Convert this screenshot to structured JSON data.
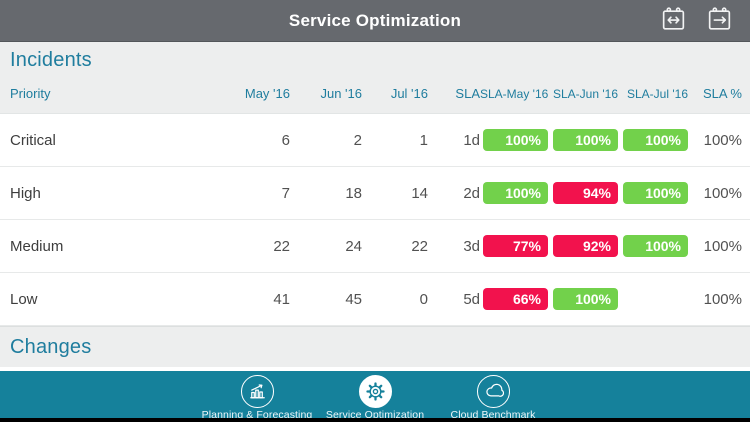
{
  "header": {
    "title": "Service Optimization",
    "icons": [
      {
        "name": "calendar-range-icon"
      },
      {
        "name": "calendar-forward-icon"
      }
    ]
  },
  "sections": {
    "incidents_title": "Incidents",
    "changes_title": "Changes"
  },
  "incidents_table": {
    "columns": [
      "Priority",
      "May '16",
      "Jun '16",
      "Jul '16",
      "SLA",
      "SLA-May '16",
      "SLA-Jun '16",
      "SLA-Jul '16",
      "SLA %"
    ],
    "rows": [
      {
        "priority": "Critical",
        "may": "6",
        "jun": "2",
        "jul": "1",
        "sla": "1d",
        "sla_may": {
          "label": "100%",
          "status": "pass"
        },
        "sla_jun": {
          "label": "100%",
          "status": "pass"
        },
        "sla_jul": {
          "label": "100%",
          "status": "pass"
        },
        "sla_pct": "100%"
      },
      {
        "priority": "High",
        "may": "7",
        "jun": "18",
        "jul": "14",
        "sla": "2d",
        "sla_may": {
          "label": "100%",
          "status": "pass"
        },
        "sla_jun": {
          "label": "94%",
          "status": "fail"
        },
        "sla_jul": {
          "label": "100%",
          "status": "pass"
        },
        "sla_pct": "100%"
      },
      {
        "priority": "Medium",
        "may": "22",
        "jun": "24",
        "jul": "22",
        "sla": "3d",
        "sla_may": {
          "label": "77%",
          "status": "fail"
        },
        "sla_jun": {
          "label": "92%",
          "status": "fail"
        },
        "sla_jul": {
          "label": "100%",
          "status": "pass"
        },
        "sla_pct": "100%"
      },
      {
        "priority": "Low",
        "may": "41",
        "jun": "45",
        "jul": "0",
        "sla": "5d",
        "sla_may": {
          "label": "66%",
          "status": "fail"
        },
        "sla_jun": {
          "label": "100%",
          "status": "pass"
        },
        "sla_jul": null,
        "sla_pct": "100%"
      }
    ]
  },
  "tab_bar": {
    "tabs": [
      {
        "label": "Planning & Forecasting",
        "icon": "forecast-chart-icon",
        "active": false
      },
      {
        "label": "Service Optimization",
        "icon": "gear-icon",
        "active": true
      },
      {
        "label": "Cloud Benchmark",
        "icon": "cloud-icon",
        "active": false
      }
    ]
  },
  "colors": {
    "nav_bar": "#66696e",
    "accent_teal": "#1f7d9e",
    "tab_bar_teal": "#15819b",
    "pass_badge_green": "#72d14b",
    "fail_badge_red": "#f2124d"
  }
}
